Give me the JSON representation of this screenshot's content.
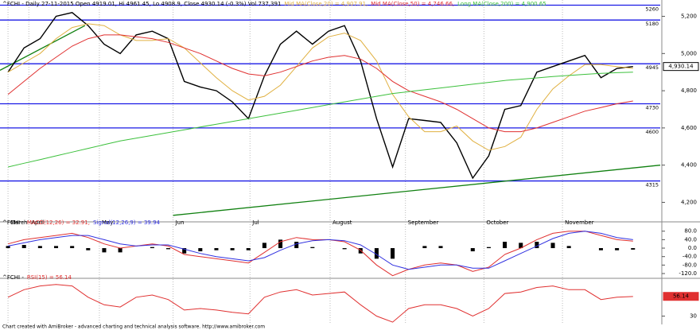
{
  "chart_data": [
    {
      "type": "line",
      "title": "^FCHI - Daily 27-11-2015 Open 4919.01, Hi 4961.45, Lo 4908.9, Close 4930.14 (-0.3%) Vol 737,391",
      "xlim": [
        -0.5,
        40.7
      ],
      "xticks": [
        {
          "value": 0,
          "label": "March"
        },
        {
          "value": 1.3,
          "label": "April"
        },
        {
          "value": 5.7,
          "label": "May"
        },
        {
          "value": 10.3,
          "label": "Jun"
        },
        {
          "value": 15.1,
          "label": "Jul"
        },
        {
          "value": 20.1,
          "label": "August"
        },
        {
          "value": 24.8,
          "label": "September"
        },
        {
          "value": 29.7,
          "label": "October"
        },
        {
          "value": 34.6,
          "label": "November"
        }
      ],
      "ylim": [
        4125,
        5245
      ],
      "yticks": [
        {
          "value": 5200,
          "label": "5,200"
        },
        {
          "value": 5000,
          "label": "5,000"
        },
        {
          "value": 4800,
          "label": "4,800"
        },
        {
          "value": 4600,
          "label": "4,600"
        },
        {
          "value": 4400,
          "label": "4,400"
        },
        {
          "value": 4200,
          "label": "4,200"
        }
      ],
      "grid": true,
      "levels": [
        5260,
        5180,
        4945,
        4730,
        4600,
        4315
      ],
      "level_color": "#1a1ae6",
      "last": {
        "value": 4930.14,
        "label": "4,930.14"
      },
      "series": [
        {
          "color": "#000000",
          "values": [
            4900,
            5030,
            5080,
            5200,
            5220,
            5150,
            5050,
            5000,
            5100,
            5120,
            5080,
            4850,
            4820,
            4800,
            4740,
            4650,
            4880,
            5050,
            5120,
            5050,
            5120,
            5150,
            4960,
            4650,
            4390,
            4650,
            4640,
            4630,
            4520,
            4330,
            4450,
            4700,
            4720,
            4900,
            4930,
            4960,
            4990,
            4870,
            4920,
            4930
          ]
        },
        {
          "name": "Mid MA(Close,20) = 4,907.91,",
          "color": "#e0b040",
          "values": [
            4900,
            4950,
            5000,
            5080,
            5140,
            5160,
            5150,
            5100,
            5070,
            5070,
            5080,
            5030,
            4950,
            4870,
            4800,
            4750,
            4770,
            4830,
            4930,
            5030,
            5090,
            5110,
            5070,
            4960,
            4780,
            4660,
            4580,
            4580,
            4610,
            4530,
            4480,
            4500,
            4550,
            4700,
            4810,
            4880,
            4940,
            4940,
            4930,
            4920
          ]
        },
        {
          "name": "Mid MA(Close,50) = 4,746.66,",
          "color": "#e03030",
          "values": [
            4780,
            4850,
            4920,
            4980,
            5040,
            5080,
            5100,
            5100,
            5090,
            5080,
            5060,
            5030,
            5000,
            4960,
            4920,
            4890,
            4880,
            4900,
            4930,
            4960,
            4980,
            4990,
            4970,
            4920,
            4850,
            4800,
            4770,
            4740,
            4700,
            4650,
            4600,
            4580,
            4580,
            4600,
            4630,
            4660,
            4690,
            4710,
            4730,
            4745
          ]
        },
        {
          "name": "Long MA(Close,200) = 4,900.65",
          "color": "#3cc03c",
          "values": [
            4390,
            4410,
            4430,
            4450,
            4470,
            4490,
            4510,
            4530,
            4545,
            4560,
            4575,
            4590,
            4605,
            4620,
            4635,
            4650,
            4665,
            4680,
            4695,
            4710,
            4725,
            4740,
            4755,
            4770,
            4785,
            4795,
            4805,
            4815,
            4825,
            4835,
            4845,
            4855,
            4862,
            4869,
            4876,
            4882,
            4888,
            4893,
            4897,
            4900
          ]
        }
      ],
      "trendlines": [
        {
          "color": "#108010",
          "x": [
            10.3,
            40.7
          ],
          "values": [
            4130,
            4400
          ]
        },
        {
          "color": "#108010",
          "x": [
            -0.5,
            4.8
          ],
          "values": [
            4910,
            5150
          ]
        }
      ]
    },
    {
      "type": "line",
      "title": "^FCHI -",
      "ylim": [
        -135,
        109
      ],
      "yticks": [
        {
          "value": 80,
          "label": "80.0"
        },
        {
          "value": 40,
          "label": "40.0"
        },
        {
          "value": 0,
          "label": "0.0"
        },
        {
          "value": -40,
          "label": "-40.0"
        },
        {
          "value": -80,
          "label": "-80.0"
        },
        {
          "value": -120,
          "label": "-120.0"
        }
      ],
      "series": [
        {
          "type": "bar",
          "color": "#000000",
          "values": [
            10,
            15,
            10,
            10,
            10,
            -10,
            -20,
            -20,
            0,
            5,
            -5,
            -25,
            -15,
            -10,
            -10,
            -10,
            25,
            40,
            30,
            5,
            0,
            -5,
            -25,
            -50,
            -50,
            0,
            10,
            10,
            0,
            -15,
            5,
            30,
            25,
            30,
            25,
            10,
            0,
            -10,
            -10,
            -7
          ]
        },
        {
          "name": "MACD(12,26) = 32.91,",
          "color": "#e03030",
          "values": [
            20,
            40,
            50,
            60,
            70,
            50,
            20,
            0,
            10,
            20,
            10,
            -30,
            -40,
            -50,
            -60,
            -70,
            -20,
            30,
            50,
            40,
            40,
            30,
            -10,
            -80,
            -130,
            -100,
            -80,
            -70,
            -80,
            -110,
            -90,
            -30,
            0,
            40,
            70,
            80,
            80,
            60,
            40,
            33
          ]
        },
        {
          "name": "Signal(12,26,9) = 39.94",
          "color": "#3030e0",
          "values": [
            10,
            25,
            40,
            50,
            60,
            60,
            40,
            20,
            10,
            15,
            15,
            -5,
            -25,
            -40,
            -50,
            -60,
            -45,
            -10,
            20,
            35,
            40,
            35,
            15,
            -30,
            -80,
            -100,
            -90,
            -80,
            -80,
            -95,
            -95,
            -60,
            -25,
            10,
            45,
            70,
            80,
            70,
            50,
            40
          ]
        }
      ]
    },
    {
      "type": "line",
      "title": "^FCHI -",
      "ylim": [
        20,
        78
      ],
      "yticks": [
        30
      ],
      "last": 56.14,
      "series": [
        {
          "name": "RSI(15) = 56.14",
          "color": "#e03030",
          "values": [
            55,
            65,
            70,
            72,
            70,
            55,
            45,
            42,
            55,
            58,
            52,
            38,
            40,
            38,
            35,
            33,
            55,
            62,
            65,
            58,
            60,
            62,
            45,
            30,
            22,
            40,
            45,
            45,
            40,
            30,
            40,
            60,
            62,
            68,
            70,
            65,
            65,
            52,
            55,
            56
          ]
        }
      ]
    }
  ],
  "footer": "Chart created with AmiBroker - advanced charting and technical analysis software. http://www.amibroker.com"
}
